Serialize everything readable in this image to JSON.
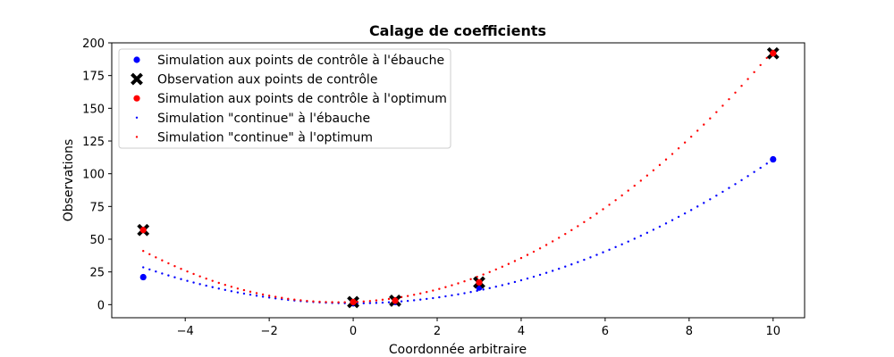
{
  "chart_data": {
    "type": "scatter",
    "title": "Calage de coefficients",
    "xlabel": "Coordonnée arbitraire",
    "ylabel": "Observations",
    "xlim": [
      -5.75,
      10.75
    ],
    "ylim": [
      -10,
      200
    ],
    "xticks": [
      -4,
      -2,
      0,
      2,
      4,
      6,
      8,
      10
    ],
    "xtick_labels": [
      "−4",
      "−2",
      "0",
      "2",
      "4",
      "6",
      "8",
      "10"
    ],
    "yticks": [
      0,
      25,
      50,
      75,
      100,
      125,
      150,
      175,
      200
    ],
    "ytick_labels": [
      "0",
      "25",
      "50",
      "75",
      "100",
      "125",
      "150",
      "175",
      "200"
    ],
    "grid": false,
    "legend_position": "top-left",
    "series": [
      {
        "name": "Simulation aux points de contrôle à l'ébauche",
        "style": "dot",
        "color": "#0000ff",
        "x": [
          -5,
          0,
          1,
          3,
          10
        ],
        "y": [
          21,
          1,
          2,
          13,
          111
        ]
      },
      {
        "name": "Observation aux points de contrôle",
        "style": "x",
        "color": "#000000",
        "x": [
          -5,
          0,
          1,
          3,
          10
        ],
        "y": [
          57,
          2,
          3,
          17,
          192
        ]
      },
      {
        "name": "Simulation aux points de contrôle à l'optimum",
        "style": "dot",
        "color": "#ff0000",
        "x": [
          -5,
          0,
          1,
          3,
          10
        ],
        "y": [
          57,
          2,
          3,
          17,
          192
        ]
      },
      {
        "name": "Simulation \"continue\" à l'ébauche",
        "style": "dotted-line",
        "color": "#0000ff",
        "curve": {
          "a": 1.1,
          "b": 0,
          "c": 1,
          "x_start": -5,
          "x_end": 10,
          "step": 0.15
        }
      },
      {
        "name": "Simulation \"continue\" à l'optimum",
        "style": "dotted-line",
        "color": "#ff0000",
        "curve": {
          "a": 1.8,
          "b": 1.2,
          "c": 2,
          "x_start": -5,
          "x_end": 10,
          "step": 0.15
        }
      }
    ]
  }
}
